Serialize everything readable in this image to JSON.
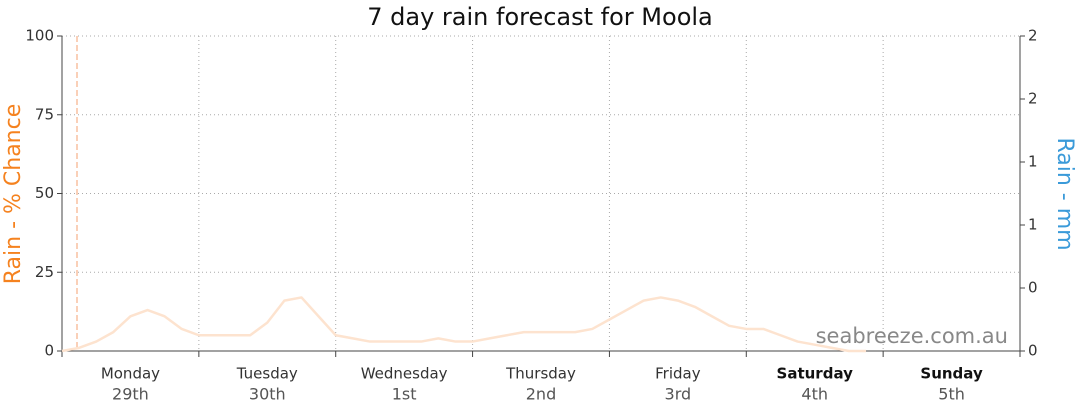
{
  "chart_data": {
    "type": "line",
    "title": "7 day rain forecast for Moola",
    "y_label": "Rain - % Chance",
    "y2_label": "Rain - mm",
    "watermark": "seabreeze.com.au",
    "categories": [
      "Monday",
      "Tuesday",
      "Wednesday",
      "Thursday",
      "Friday",
      "Saturday",
      "Sunday"
    ],
    "dates": [
      "29th",
      "30th",
      "1st",
      "2nd",
      "3rd",
      "4th",
      "5th"
    ],
    "bold": [
      false,
      false,
      false,
      false,
      false,
      true,
      true
    ],
    "xlim": [
      0,
      168
    ],
    "xticks": [
      0,
      24,
      48,
      72,
      96,
      120,
      144,
      168
    ],
    "ylim": [
      0,
      100
    ],
    "yticks": [
      0,
      25,
      50,
      75,
      100
    ],
    "y2lim": [
      0,
      2
    ],
    "y2ticks": [
      {
        "value": 0,
        "label": "0"
      },
      {
        "value": 0.4,
        "label": "0"
      },
      {
        "value": 0.8,
        "label": "1"
      },
      {
        "value": 1.2,
        "label": "1"
      },
      {
        "value": 1.6,
        "label": "2"
      },
      {
        "value": 2,
        "label": "2"
      }
    ],
    "grid": true,
    "x": [
      0,
      3,
      6,
      9,
      12,
      15,
      18,
      21,
      24,
      27,
      30,
      33,
      36,
      39,
      42,
      45,
      48,
      51,
      54,
      57,
      60,
      63,
      66,
      69,
      72,
      75,
      78,
      81,
      84,
      87,
      90,
      93,
      96,
      99,
      102,
      105,
      108,
      111,
      114,
      117,
      120,
      123,
      126,
      129,
      132,
      135,
      138,
      141
    ],
    "series": [
      {
        "name": "Rain chance",
        "color": "#fde3cf",
        "values": [
          0,
          1,
          3,
          6,
          11,
          13,
          11,
          7,
          5,
          5,
          5,
          5,
          9,
          16,
          17,
          11,
          5,
          4,
          3,
          3,
          3,
          3,
          4,
          3,
          3,
          4,
          5,
          6,
          6,
          6,
          6,
          7,
          10,
          13,
          16,
          17,
          16,
          14,
          11,
          8,
          7,
          7,
          5,
          3,
          2,
          1,
          0,
          0
        ]
      }
    ]
  }
}
